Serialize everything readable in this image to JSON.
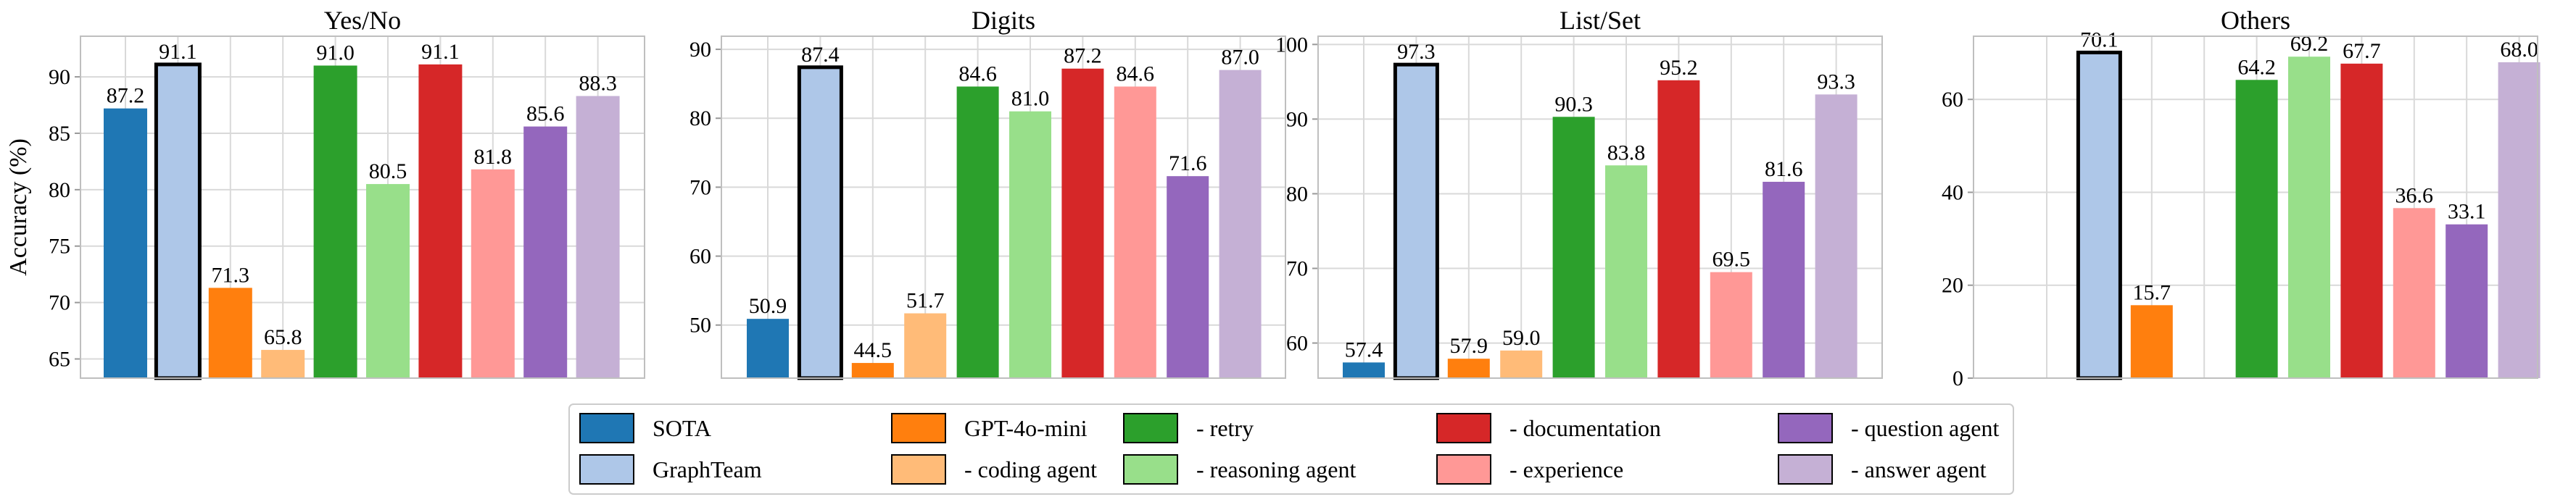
{
  "chart_data": {
    "type": "bar",
    "ylabel": "Accuracy (%)",
    "legend_placement": "bottom-center",
    "grid": true,
    "series": [
      {
        "name": "SOTA",
        "color": "#1f77b4"
      },
      {
        "name": "GraphTeam",
        "color": "#aec7e8",
        "highlight": true
      },
      {
        "name": "GPT-4o-mini",
        "color": "#ff7f0e"
      },
      {
        "name": "- coding agent",
        "color": "#ffbb78"
      },
      {
        "name": "- retry",
        "color": "#2ca02c"
      },
      {
        "name": "- reasoning agent",
        "color": "#98df8a"
      },
      {
        "name": "- documentation",
        "color": "#d62728"
      },
      {
        "name": "- experience",
        "color": "#ff9896"
      },
      {
        "name": "- question agent",
        "color": "#9467bd"
      },
      {
        "name": "- answer agent",
        "color": "#c5b0d5"
      }
    ],
    "panels": [
      {
        "title": "Yes/No",
        "ylim": [
          63.3,
          93.6
        ],
        "yticks": [
          65,
          70,
          75,
          80,
          85,
          90
        ],
        "values": [
          87.2,
          91.1,
          71.3,
          65.8,
          91.0,
          80.5,
          91.1,
          81.8,
          85.6,
          88.3
        ],
        "value_labels": [
          "87.2",
          "91.1",
          "71.3",
          "65.8",
          "91.0",
          "80.5",
          "91.1",
          "81.8",
          "85.6",
          "88.3"
        ]
      },
      {
        "title": "Digits",
        "ylim": [
          42.3,
          91.9
        ],
        "yticks": [
          50,
          60,
          70,
          80,
          90
        ],
        "values": [
          50.9,
          87.4,
          44.5,
          51.7,
          84.6,
          81.0,
          87.2,
          84.6,
          71.6,
          87.0
        ],
        "value_labels": [
          "50.9",
          "87.4",
          "44.5",
          "51.7",
          "84.6",
          "81.0",
          "87.2",
          "84.6",
          "71.6",
          "87.0"
        ]
      },
      {
        "title": "List/Set",
        "ylim": [
          55.3,
          101.1
        ],
        "yticks": [
          60,
          70,
          80,
          90,
          100
        ],
        "values": [
          57.4,
          97.3,
          57.9,
          59.0,
          90.3,
          83.8,
          95.2,
          69.5,
          81.6,
          93.3
        ],
        "value_labels": [
          "57.4",
          "97.3",
          "57.9",
          "59.0",
          "90.3",
          "83.8",
          "95.2",
          "69.5",
          "81.6",
          "93.3"
        ]
      },
      {
        "title": "Others",
        "ylim": [
          0,
          73.6
        ],
        "yticks": [
          0,
          20,
          40,
          60
        ],
        "values": [
          null,
          70.1,
          15.7,
          null,
          64.2,
          69.2,
          67.7,
          36.6,
          33.1,
          68.0
        ],
        "value_labels": [
          "",
          "70.1",
          "15.7",
          "",
          "64.2",
          "69.2",
          "67.7",
          "36.6",
          "33.1",
          "68.0"
        ]
      }
    ]
  }
}
